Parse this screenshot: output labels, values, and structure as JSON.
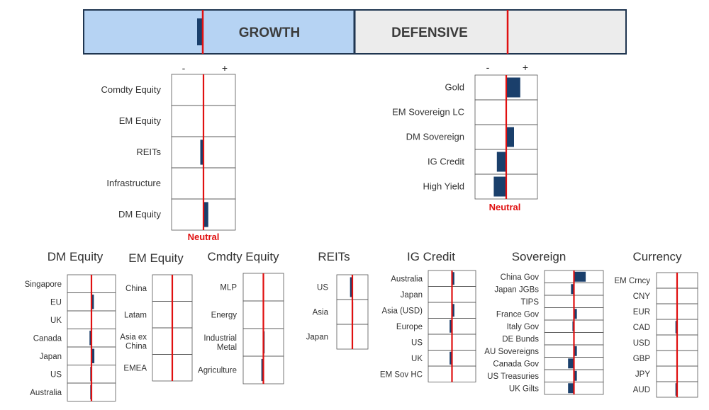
{
  "colors": {
    "growth_fill": "#b6d3f3",
    "defensive_fill": "#ececec",
    "border": "#1f3550",
    "neutral_line": "#e01010",
    "bar": "#1a3f6b",
    "grid": "#555555"
  },
  "banner": {
    "growth": {
      "label": "GROWTH",
      "position": -0.05
    },
    "defensive": {
      "label": "DEFENSIVE",
      "position": 0.05
    }
  },
  "scale": {
    "minus": "-",
    "plus": "+",
    "neutral": "Neutral"
  },
  "chart_data": [
    {
      "type": "bar",
      "id": "growth",
      "categories": [
        "Comdty Equity",
        "EM Equity",
        "REITs",
        "Infrastructure",
        "DM Equity"
      ],
      "values": [
        0,
        0,
        -0.1,
        0,
        0.15
      ],
      "xlim": [
        -1,
        1
      ]
    },
    {
      "type": "bar",
      "id": "defensive",
      "categories": [
        "Gold",
        "EM Sovereign LC",
        "DM Sovereign",
        "IG Credit",
        "High Yield"
      ],
      "values": [
        0.45,
        0,
        0.25,
        -0.3,
        -0.4
      ],
      "xlim": [
        -1,
        1
      ]
    },
    {
      "type": "bar",
      "id": "dm-equity",
      "title": "DM Equity",
      "categories": [
        "Singapore",
        "EU",
        "UK",
        "Canada",
        "Japan",
        "US",
        "Australia"
      ],
      "values": [
        0,
        0.1,
        0,
        -0.08,
        0.12,
        -0.05,
        -0.05
      ],
      "xlim": [
        -1,
        1
      ]
    },
    {
      "type": "bar",
      "id": "em-equity",
      "title": "EM Equity",
      "categories": [
        "China",
        "Latam",
        "Asia ex China",
        "EMEA"
      ],
      "values": [
        0,
        0,
        0,
        0
      ],
      "xlim": [
        -1,
        1
      ]
    },
    {
      "type": "bar",
      "id": "cmdty-equity",
      "title": "Cmdty Equity",
      "categories": [
        "MLP",
        "Energy",
        "Industrial Metal",
        "Agriculture"
      ],
      "values": [
        0,
        0,
        0.06,
        -0.1
      ],
      "xlim": [
        -1,
        1
      ]
    },
    {
      "type": "bar",
      "id": "reits",
      "title": "REITs",
      "categories": [
        "US",
        "Asia",
        "Japan"
      ],
      "values": [
        -0.15,
        0.05,
        0
      ],
      "xlim": [
        -1,
        1
      ]
    },
    {
      "type": "bar",
      "id": "ig-credit",
      "title": "IG Credit",
      "categories": [
        "Australia",
        "Japan",
        "Asia (USD)",
        "Europe",
        "US",
        "UK",
        "EM Sov HC"
      ],
      "values": [
        0.1,
        0,
        0.1,
        -0.1,
        0,
        -0.1,
        0
      ],
      "xlim": [
        -1,
        1
      ]
    },
    {
      "type": "bar",
      "id": "sovereign",
      "title": "Sovereign",
      "categories": [
        "China Gov",
        "Japan JGBs",
        "TIPS",
        "France Gov",
        "Italy Gov",
        "DE Bunds",
        "AU Sovereigns",
        "Canada Gov",
        "US Treasuries",
        "UK Gilts"
      ],
      "values": [
        0.4,
        -0.1,
        0,
        0.1,
        -0.05,
        0,
        0.1,
        -0.2,
        0.1,
        -0.2
      ],
      "xlim": [
        -1,
        1
      ]
    },
    {
      "type": "bar",
      "id": "currency",
      "title": "Currency",
      "categories": [
        "EM Crncy",
        "CNY",
        "EUR",
        "CAD",
        "USD",
        "GBP",
        "JPY",
        "AUD"
      ],
      "values": [
        0,
        0,
        0,
        -0.08,
        0,
        0,
        0,
        -0.08
      ],
      "xlim": [
        -1,
        1
      ]
    }
  ]
}
